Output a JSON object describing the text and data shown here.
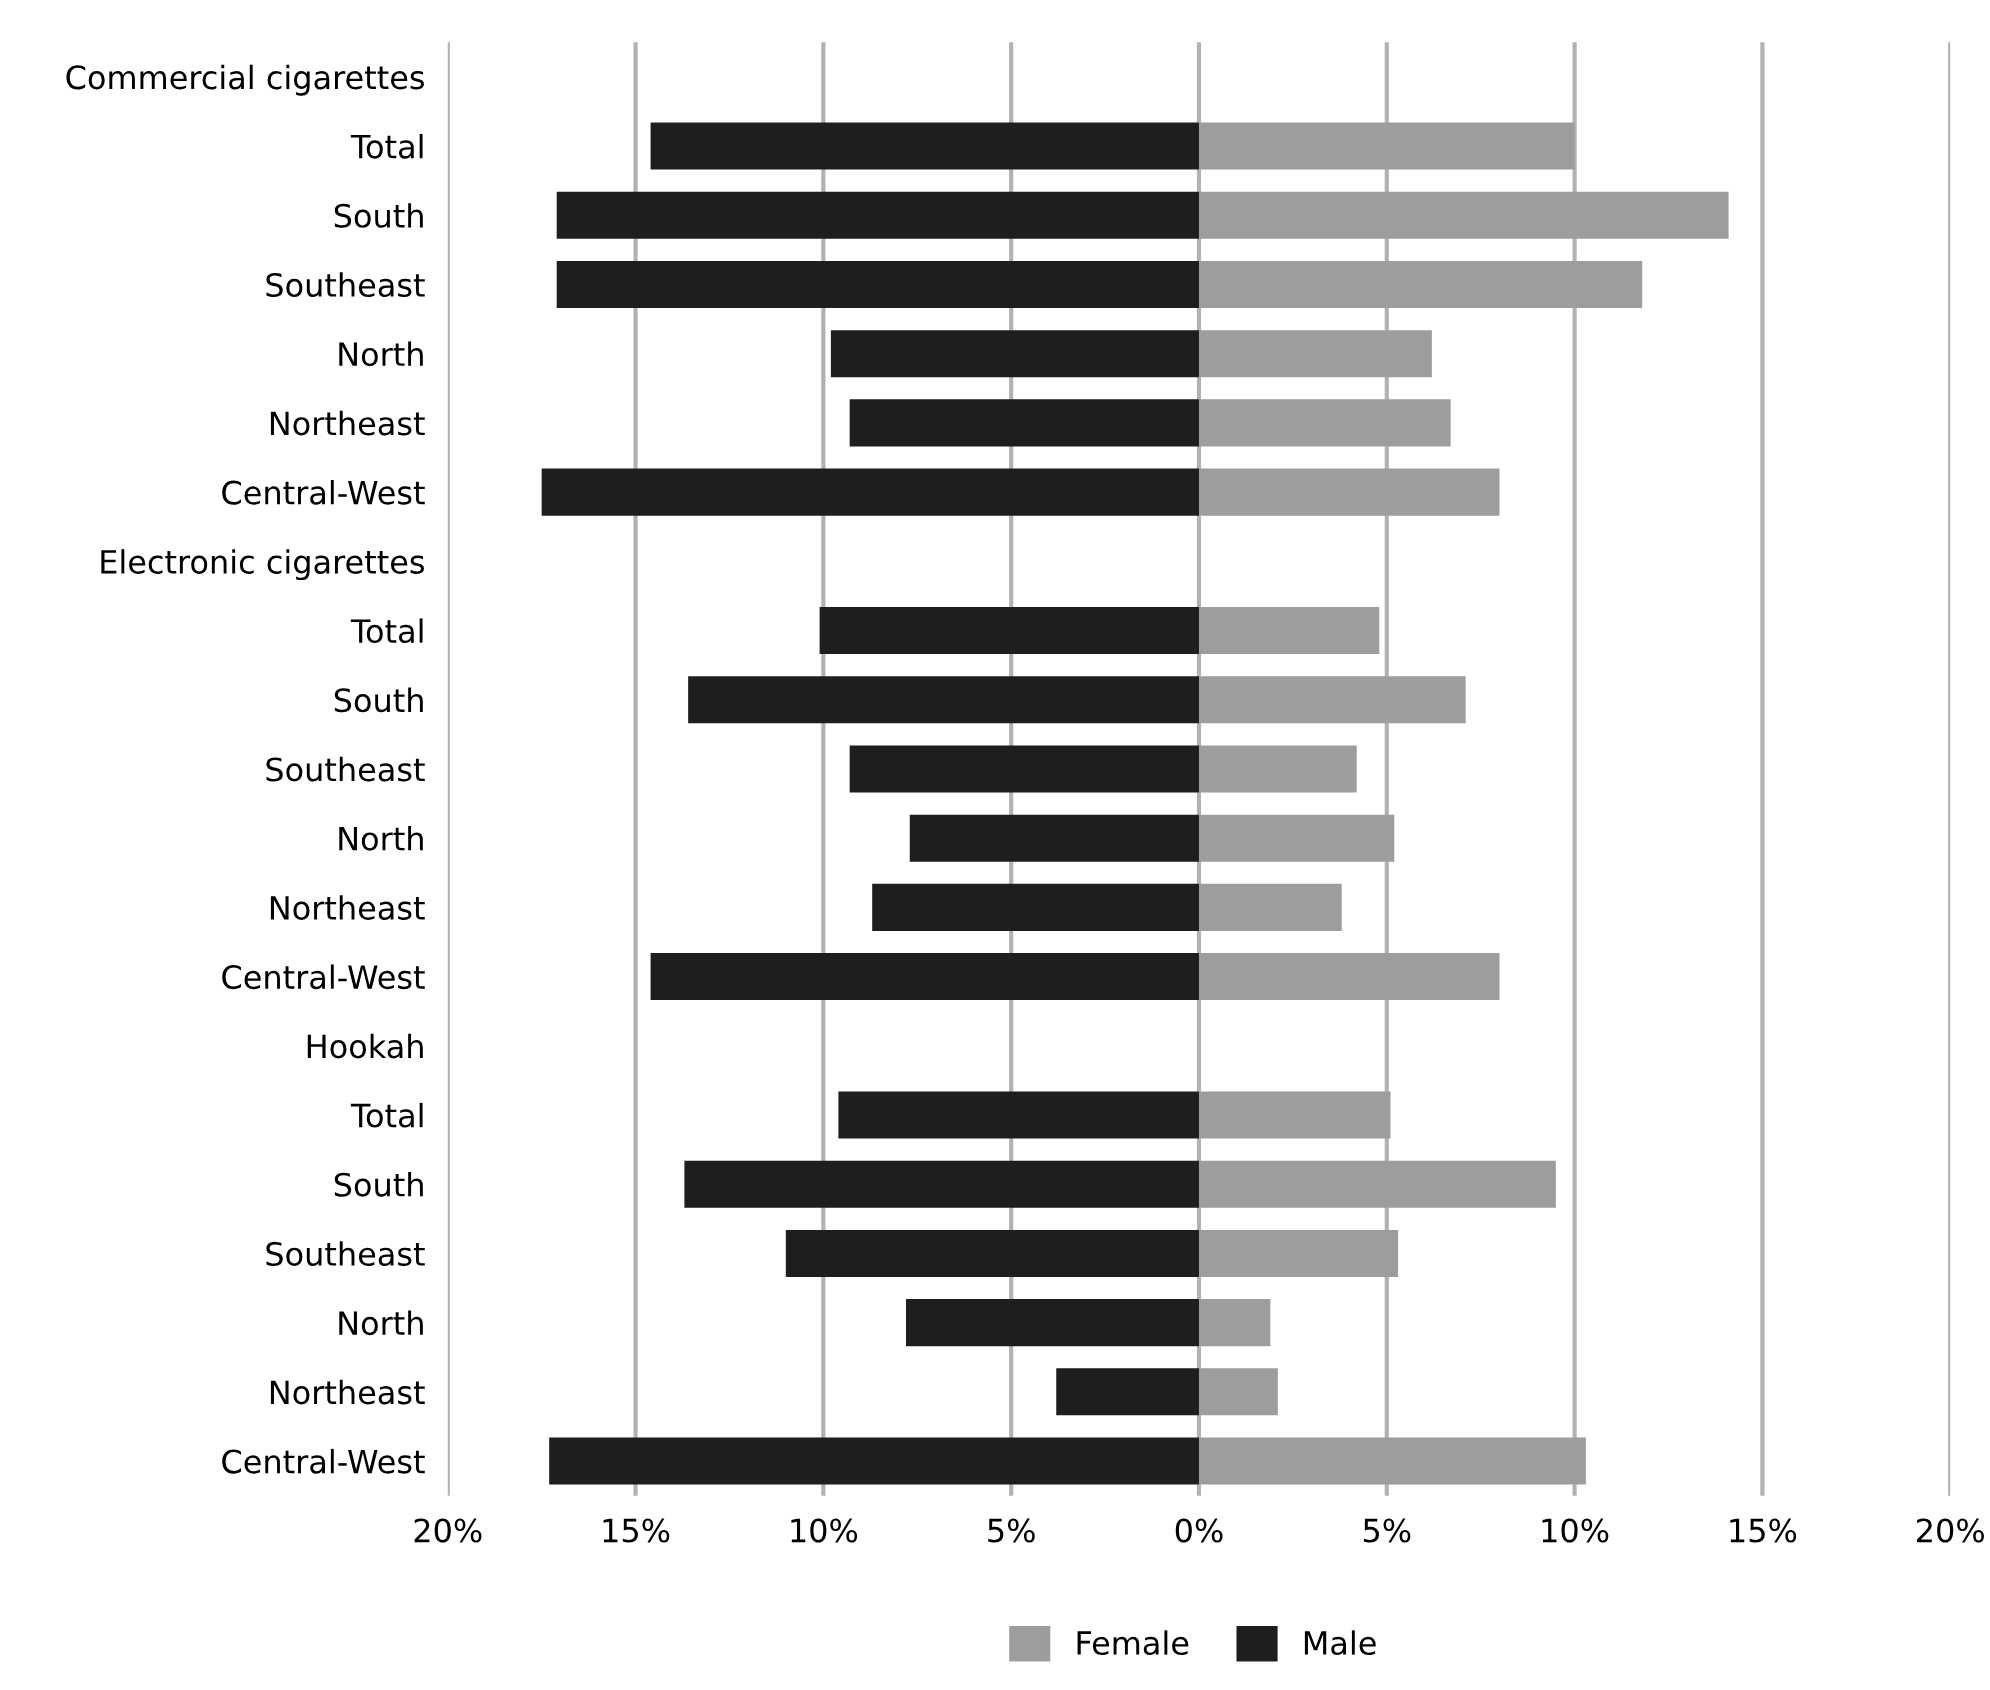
{
  "chart_data": {
    "type": "bar",
    "orientation": "horizontal",
    "categories": [
      "Commercial cigarettes",
      "Total",
      "South",
      "Southeast",
      "North",
      "Northeast",
      "Central-West",
      "Electronic cigarettes",
      "Total",
      "South",
      "Southeast",
      "North",
      "Northeast",
      "Central-West",
      "Hookah",
      "Total",
      "South",
      "Southeast",
      "North",
      "Northeast",
      "Central-West"
    ],
    "series": [
      {
        "name": "Female",
        "color": "#9d9d9c",
        "values": [
          null,
          10.0,
          14.1,
          11.8,
          6.2,
          6.7,
          8.0,
          null,
          4.8,
          7.1,
          4.2,
          5.2,
          3.8,
          8.0,
          null,
          5.1,
          9.5,
          5.3,
          1.9,
          2.1,
          10.3
        ]
      },
      {
        "name": "Male",
        "color": "#1e1e1c",
        "values": [
          null,
          -14.6,
          -17.1,
          -17.1,
          -9.8,
          -9.3,
          -17.5,
          null,
          -10.1,
          -13.6,
          -9.3,
          -7.7,
          -8.7,
          -14.6,
          null,
          -9.6,
          -13.7,
          -11.0,
          -7.8,
          -3.8,
          -17.3
        ]
      }
    ],
    "xlim": [
      -20,
      20
    ],
    "xticks": [
      {
        "value": -20,
        "label": "20%"
      },
      {
        "value": -15,
        "label": "15%"
      },
      {
        "value": -10,
        "label": "10%"
      },
      {
        "value": -5,
        "label": "5%"
      },
      {
        "value": 0,
        "label": "0%"
      },
      {
        "value": 5,
        "label": "5%"
      },
      {
        "value": 10,
        "label": "10%"
      },
      {
        "value": 15,
        "label": "15%"
      },
      {
        "value": 20,
        "label": "20%"
      }
    ],
    "grid": "x",
    "legend": "bottom",
    "stacked": true
  }
}
